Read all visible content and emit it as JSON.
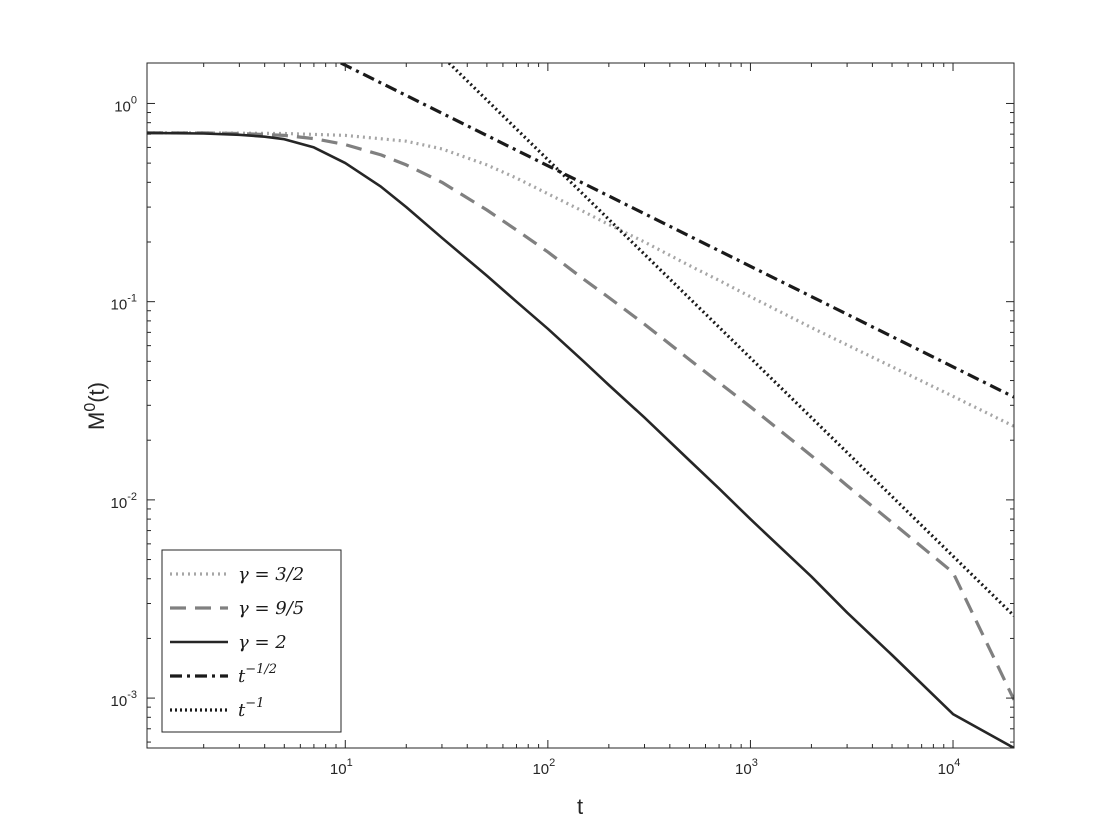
{
  "chart_data": {
    "type": "line",
    "title": "",
    "xlabel": "t",
    "ylabel": "M",
    "ylabel_sup": "0",
    "ylabel_suffix": "(t)",
    "xscale": "log",
    "yscale": "log",
    "xlim": [
      1.05,
      20000
    ],
    "ylim": [
      0.00056,
      1.6
    ],
    "grid": false,
    "legend_placement": "bottom-left",
    "x_ticks": [
      {
        "base": "10",
        "exp": "1",
        "value": 10
      },
      {
        "base": "10",
        "exp": "2",
        "value": 100
      },
      {
        "base": "10",
        "exp": "3",
        "value": 1000
      },
      {
        "base": "10",
        "exp": "4",
        "value": 10000
      }
    ],
    "y_ticks": [
      {
        "base": "10",
        "exp": "-3",
        "value": 0.001
      },
      {
        "base": "10",
        "exp": "-2",
        "value": 0.01
      },
      {
        "base": "10",
        "exp": "-1",
        "value": 0.1
      },
      {
        "base": "10",
        "exp": "0",
        "value": 1
      }
    ],
    "series": [
      {
        "name": "γ = 3/2",
        "color": "#a6a6a6",
        "style": "dotted",
        "points": [
          [
            1.05,
            0.71
          ],
          [
            2,
            0.71
          ],
          [
            5,
            0.705
          ],
          [
            10,
            0.69
          ],
          [
            20,
            0.645
          ],
          [
            30,
            0.59
          ],
          [
            50,
            0.49
          ],
          [
            70,
            0.42
          ],
          [
            100,
            0.35
          ],
          [
            150,
            0.285
          ],
          [
            200,
            0.245
          ],
          [
            300,
            0.2
          ],
          [
            500,
            0.152
          ],
          [
            700,
            0.128
          ],
          [
            1000,
            0.106
          ],
          [
            2000,
            0.074
          ],
          [
            3000,
            0.0605
          ],
          [
            5000,
            0.047
          ],
          [
            10000,
            0.0333
          ],
          [
            20000,
            0.0235
          ]
        ]
      },
      {
        "name": "γ = 9/5",
        "color": "#808080",
        "style": "dashed",
        "points": [
          [
            1.05,
            0.71
          ],
          [
            2,
            0.71
          ],
          [
            3,
            0.705
          ],
          [
            5,
            0.69
          ],
          [
            7,
            0.665
          ],
          [
            10,
            0.62
          ],
          [
            15,
            0.55
          ],
          [
            20,
            0.49
          ],
          [
            30,
            0.4
          ],
          [
            50,
            0.29
          ],
          [
            70,
            0.23
          ],
          [
            100,
            0.178
          ],
          [
            150,
            0.13
          ],
          [
            200,
            0.105
          ],
          [
            300,
            0.077
          ],
          [
            500,
            0.051
          ],
          [
            700,
            0.039
          ],
          [
            1000,
            0.0295
          ],
          [
            2000,
            0.0167
          ],
          [
            3000,
            0.0118
          ],
          [
            5000,
            0.0077
          ],
          [
            10000,
            0.0043
          ],
          [
            20000,
            0.00098
          ]
        ]
      },
      {
        "name": "γ = 2",
        "color": "#262626",
        "style": "solid",
        "points": [
          [
            1.05,
            0.71
          ],
          [
            2,
            0.705
          ],
          [
            3,
            0.695
          ],
          [
            4,
            0.68
          ],
          [
            5,
            0.66
          ],
          [
            7,
            0.6
          ],
          [
            10,
            0.5
          ],
          [
            15,
            0.38
          ],
          [
            20,
            0.3
          ],
          [
            30,
            0.21
          ],
          [
            50,
            0.135
          ],
          [
            70,
            0.1
          ],
          [
            100,
            0.073
          ],
          [
            150,
            0.05
          ],
          [
            200,
            0.038
          ],
          [
            300,
            0.026
          ],
          [
            500,
            0.0158
          ],
          [
            700,
            0.0114
          ],
          [
            1000,
            0.008
          ],
          [
            2000,
            0.0041
          ],
          [
            3000,
            0.0027
          ],
          [
            5000,
            0.00165
          ],
          [
            10000,
            0.00083
          ],
          [
            20000,
            0.00056
          ]
        ]
      },
      {
        "name": "t^{-1/2}",
        "color": "#1a1a1a",
        "style": "dashdot",
        "points": [
          [
            9.5,
            1.6
          ],
          [
            20000,
            0.033
          ]
        ]
      },
      {
        "name": "t^{-1}",
        "color": "#1a1a1a",
        "style": "dotted-dark",
        "points": [
          [
            32.5,
            1.6
          ],
          [
            20000,
            0.0026
          ]
        ]
      }
    ],
    "legend": [
      {
        "base": "γ = 3/2",
        "sup": ""
      },
      {
        "base": "γ = 9/5",
        "sup": ""
      },
      {
        "base": "γ = 2",
        "sup": ""
      },
      {
        "base": "t",
        "sup": "−1/2"
      },
      {
        "base": "t",
        "sup": "−1"
      }
    ]
  }
}
